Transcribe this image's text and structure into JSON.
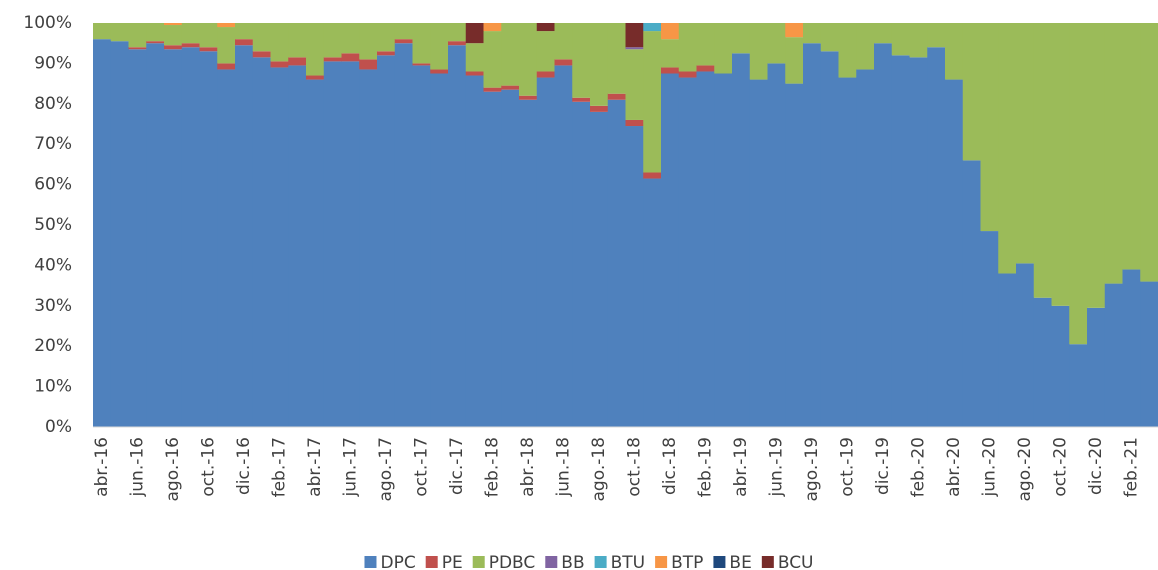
{
  "chart_data": {
    "type": "stacked-bar",
    "categories": [
      "abr.-16",
      null,
      "jun.-16",
      null,
      "ago.-16",
      null,
      "oct.-16",
      null,
      "dic.-16",
      null,
      "feb.-17",
      null,
      "abr.-17",
      null,
      "jun.-17",
      null,
      "ago.-17",
      null,
      "oct.-17",
      null,
      "dic.-17",
      null,
      "feb.-18",
      null,
      "abr.-18",
      null,
      "jun.-18",
      null,
      "ago.-18",
      null,
      "oct.-18",
      null,
      "dic.-18",
      null,
      "feb.-19",
      null,
      "abr.-19",
      null,
      "jun.-19",
      null,
      "ago.-19",
      null,
      "oct.-19",
      null,
      "dic.-19",
      null,
      "feb.-20",
      null,
      "abr.-20",
      null,
      "jun.-20",
      null,
      "ago.-20",
      null,
      "oct.-20",
      null,
      "dic.-20",
      null,
      "feb.-21",
      null
    ],
    "series": [
      {
        "name": "DPC",
        "color": "#4f81bd",
        "values": [
          96,
          95.5,
          93.5,
          95,
          93.5,
          94,
          93,
          88.5,
          94.5,
          91.5,
          89,
          89.5,
          86,
          90.5,
          90.5,
          88.5,
          92,
          95,
          89.5,
          87.5,
          94.5,
          87,
          83,
          83.5,
          81,
          86.5,
          89.5,
          80.5,
          78,
          81,
          74.5,
          61.5,
          87.5,
          86.5,
          88,
          87.5,
          92.5,
          86,
          90,
          85,
          95,
          93,
          86.5,
          88.5,
          95,
          92,
          91.5,
          94,
          86,
          66,
          48.5,
          38,
          40.5,
          32,
          30,
          20.5,
          29.5,
          35.5,
          39,
          36
        ]
      },
      {
        "name": "PE",
        "color": "#c0504d",
        "values": [
          0,
          0,
          0.5,
          0.5,
          1,
          1,
          1,
          1.5,
          1.5,
          1.5,
          1.5,
          2,
          1,
          1,
          2,
          2.5,
          1,
          1,
          0.5,
          1,
          1,
          1,
          1,
          1,
          1,
          1.5,
          1.5,
          1,
          1.5,
          1.5,
          1.5,
          1.5,
          1.5,
          1.5,
          1.5,
          0,
          0,
          0,
          0,
          0,
          0,
          0,
          0,
          0,
          0,
          0,
          0,
          0,
          0,
          0,
          0,
          0,
          0,
          0,
          0,
          0,
          0,
          0,
          0,
          0
        ]
      },
      {
        "name": "PDBC",
        "color": "#9bbb59",
        "values": [
          4,
          4.5,
          6,
          4.5,
          5,
          5,
          6,
          9,
          4,
          7,
          9.5,
          8.5,
          13,
          8.5,
          7.5,
          9,
          7,
          4,
          10,
          11.5,
          4.5,
          7,
          14,
          15.5,
          18,
          10,
          9,
          18.5,
          20.5,
          17.5,
          17.5,
          35,
          7,
          12,
          10.5,
          12.5,
          7.5,
          14,
          10,
          11.5,
          5,
          7,
          13.5,
          11.5,
          5,
          8,
          8.5,
          6,
          14,
          34,
          51.5,
          62,
          59.5,
          68,
          70,
          79.5,
          70.5,
          64.5,
          61,
          64
        ]
      },
      {
        "name": "BB",
        "color": "#8064a2",
        "values": [
          0,
          0,
          0,
          0,
          0,
          0,
          0,
          0,
          0,
          0,
          0,
          0,
          0,
          0,
          0,
          0,
          0,
          0,
          0,
          0,
          0,
          0,
          0,
          0,
          0,
          0,
          0,
          0,
          0,
          0,
          0.5,
          0,
          0,
          0,
          0,
          0,
          0,
          0,
          0,
          0,
          0,
          0,
          0,
          0,
          0,
          0,
          0,
          0,
          0,
          0,
          0,
          0,
          0,
          0,
          0,
          0,
          0,
          0,
          0,
          0
        ]
      },
      {
        "name": "BTU",
        "color": "#4bacc6",
        "values": [
          0,
          0,
          0,
          0,
          0,
          0,
          0,
          0,
          0,
          0,
          0,
          0,
          0,
          0,
          0,
          0,
          0,
          0,
          0,
          0,
          0,
          0,
          0,
          0,
          0,
          0,
          0,
          0,
          0,
          0,
          0,
          2,
          0,
          0,
          0,
          0,
          0,
          0,
          0,
          0,
          0,
          0,
          0,
          0,
          0,
          0,
          0,
          0,
          0,
          0,
          0,
          0,
          0,
          0,
          0,
          0,
          0,
          0,
          0,
          0
        ]
      },
      {
        "name": "BTP",
        "color": "#f79646",
        "values": [
          0,
          0,
          0,
          0,
          0.5,
          0,
          0,
          1,
          0,
          0,
          0,
          0,
          0,
          0,
          0,
          0,
          0,
          0,
          0,
          0,
          0,
          0,
          2,
          0,
          0,
          0,
          0,
          0,
          0,
          0,
          0,
          0,
          4,
          0,
          0,
          0,
          0,
          0,
          0,
          3.5,
          0,
          0,
          0,
          0,
          0,
          0,
          0,
          0,
          0,
          0,
          0,
          0,
          0,
          0,
          0,
          0,
          0,
          0,
          0,
          0
        ]
      },
      {
        "name": "BE",
        "color": "#1f497d",
        "values": [
          0,
          0,
          0,
          0,
          0,
          0,
          0,
          0,
          0,
          0,
          0,
          0,
          0,
          0,
          0,
          0,
          0,
          0,
          0,
          0,
          0,
          0,
          0,
          0,
          0,
          0,
          0,
          0,
          0,
          0,
          0,
          0,
          0,
          0,
          0,
          0,
          0,
          0,
          0,
          0,
          0,
          0,
          0,
          0,
          0,
          0,
          0,
          0,
          0,
          0,
          0,
          0,
          0,
          0,
          0,
          0,
          0,
          0,
          0,
          0
        ]
      },
      {
        "name": "BCU",
        "color": "#772c2a",
        "values": [
          0,
          0,
          0,
          0,
          0,
          0,
          0,
          0,
          0,
          0,
          0,
          0,
          0,
          0,
          0,
          0,
          0,
          0,
          0,
          0,
          0,
          5,
          0,
          0,
          0,
          2,
          0,
          0,
          0,
          0,
          6,
          0,
          0,
          0,
          0,
          0,
          0,
          0,
          0,
          0,
          0,
          0,
          0,
          0,
          0,
          0,
          0,
          0,
          0,
          0,
          0,
          0,
          0,
          0,
          0,
          0,
          0,
          0,
          0,
          0
        ]
      }
    ],
    "ylim": [
      0,
      100
    ],
    "yticks": [
      {
        "value": 0,
        "label": "0%"
      },
      {
        "value": 10,
        "label": "10%"
      },
      {
        "value": 20,
        "label": "20%"
      },
      {
        "value": 30,
        "label": "30%"
      },
      {
        "value": 40,
        "label": "40%"
      },
      {
        "value": 50,
        "label": "50%"
      },
      {
        "value": 60,
        "label": "60%"
      },
      {
        "value": 70,
        "label": "70%"
      },
      {
        "value": 80,
        "label": "80%"
      },
      {
        "value": 90,
        "label": "90%"
      },
      {
        "value": 100,
        "label": "100%"
      }
    ],
    "legend": "bottom"
  }
}
